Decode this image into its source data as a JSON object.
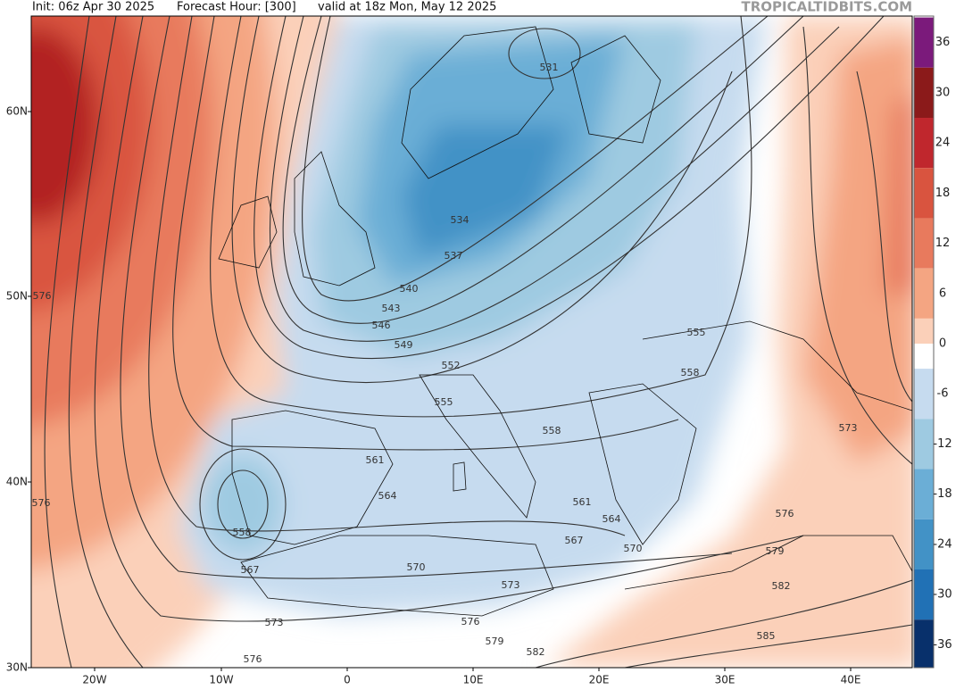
{
  "header": {
    "init": "Init: 06z Apr 30 2025",
    "forecast_hour": "Forecast Hour: [300]",
    "valid": "valid at 18z Mon, May 12 2025",
    "brand": "TROPICALTIDBITS.COM"
  },
  "lat_labels": [
    "60N",
    "50N",
    "40N",
    "30N"
  ],
  "lon_labels": [
    "20W",
    "10W",
    "0",
    "10E",
    "20E",
    "30E",
    "40E"
  ],
  "colorbar_labels": [
    36,
    30,
    24,
    18,
    12,
    6,
    0,
    -6,
    -12,
    -18,
    -24,
    -30,
    -36
  ],
  "contour_labels": [
    531,
    534,
    537,
    540,
    543,
    546,
    549,
    552,
    555,
    555,
    558,
    558,
    561,
    564,
    561,
    564,
    567,
    570,
    558,
    567,
    570,
    573,
    573,
    576,
    576,
    579,
    582,
    585,
    582,
    579,
    576,
    573,
    576,
    576
  ]
}
